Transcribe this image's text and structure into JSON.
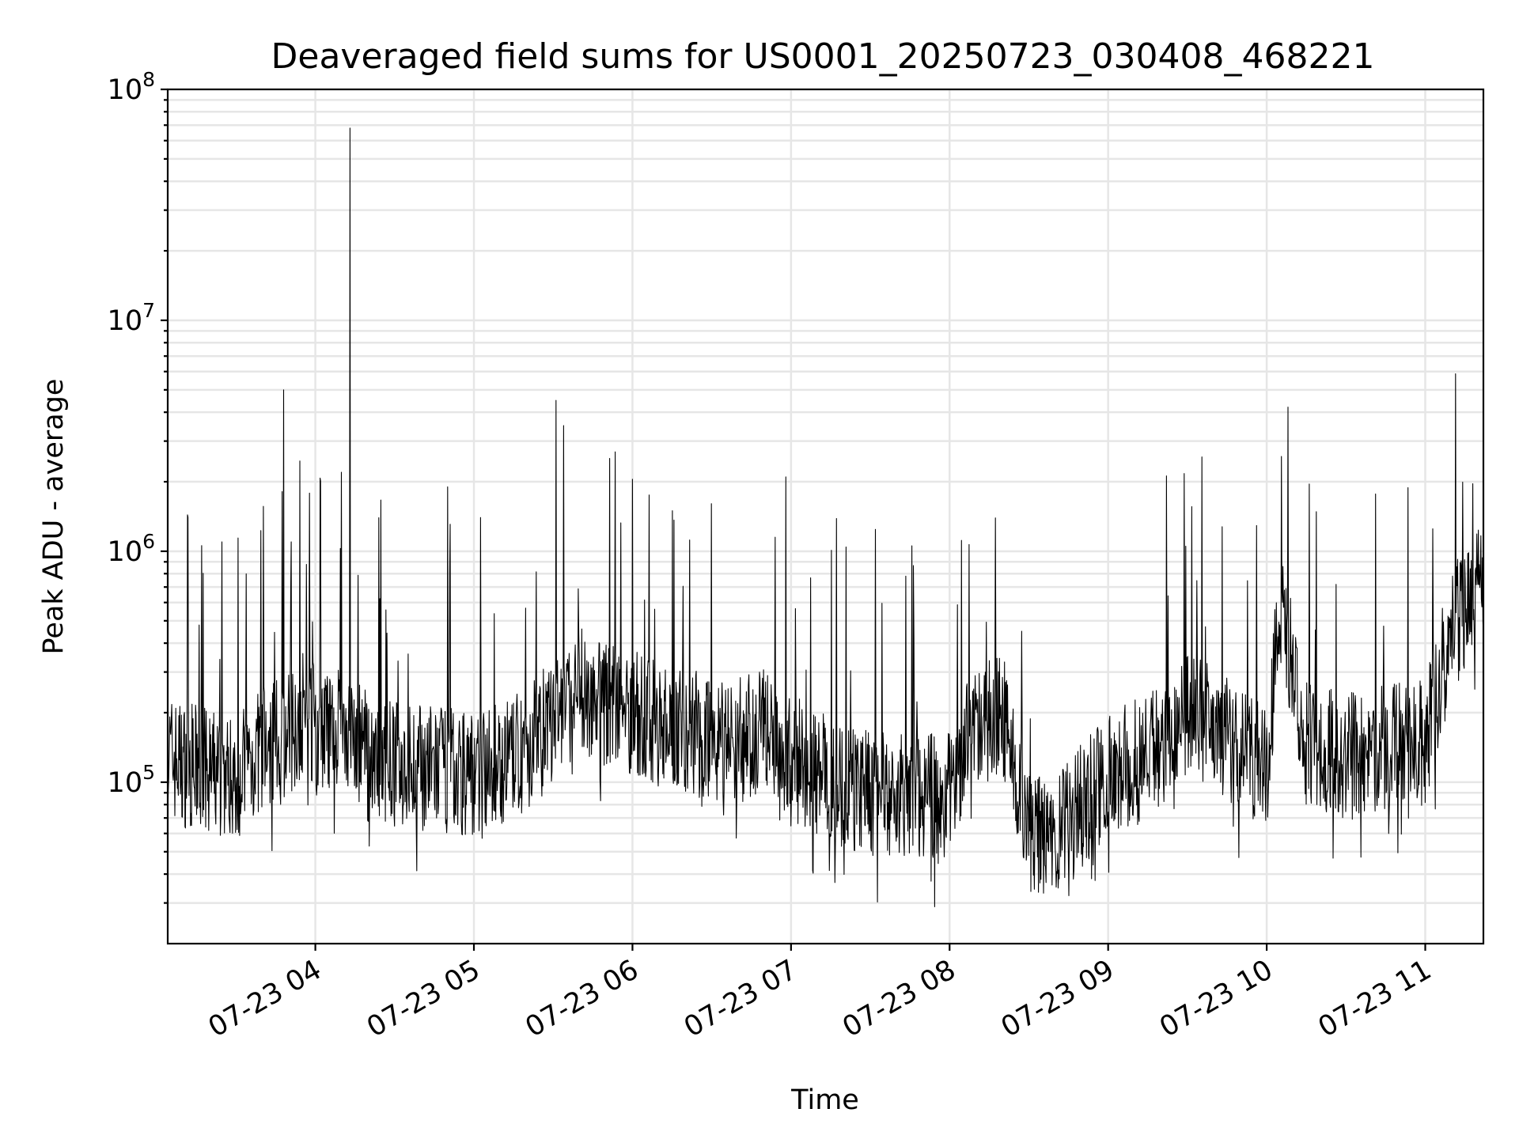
{
  "chart_data": {
    "type": "line",
    "title": "Deaveraged field sums for US0001_20250723_030408_468221",
    "xlabel": "Time",
    "ylabel": "Peak ADU - average",
    "yscale": "log",
    "ylim": [
      20000,
      100000000
    ],
    "xlim": [
      "2025-07-23 03:04:08",
      "2025-07-23 11:22:00"
    ],
    "grid": "major and minor",
    "line_color": "#000000",
    "x_ticks": [
      {
        "value": "2025-07-23 04:00",
        "label": "07-23 04"
      },
      {
        "value": "2025-07-23 05:00",
        "label": "07-23 05"
      },
      {
        "value": "2025-07-23 06:00",
        "label": "07-23 06"
      },
      {
        "value": "2025-07-23 07:00",
        "label": "07-23 07"
      },
      {
        "value": "2025-07-23 08:00",
        "label": "07-23 08"
      },
      {
        "value": "2025-07-23 09:00",
        "label": "07-23 09"
      },
      {
        "value": "2025-07-23 10:00",
        "label": "07-23 10"
      },
      {
        "value": "2025-07-23 11:00",
        "label": "07-23 11"
      }
    ],
    "y_ticks": [
      {
        "value": 100000,
        "base": "10",
        "exp": "5"
      },
      {
        "value": 1000000,
        "base": "10",
        "exp": "6"
      },
      {
        "value": 10000000,
        "base": "10",
        "exp": "7"
      },
      {
        "value": 100000000,
        "base": "10",
        "exp": "8"
      }
    ],
    "series": [
      {
        "x": [
          "2025-07-23 03:04",
          "2025-07-23 03:10",
          "2025-07-23 03:20",
          "2025-07-23 03:30",
          "2025-07-23 03:40",
          "2025-07-23 03:48",
          "2025-07-23 03:55",
          "2025-07-23 04:05",
          "2025-07-23 04:12",
          "2025-07-23 04:20",
          "2025-07-23 04:30",
          "2025-07-23 04:45",
          "2025-07-23 05:00",
          "2025-07-23 05:15",
          "2025-07-23 05:30",
          "2025-07-23 05:40",
          "2025-07-23 05:50",
          "2025-07-23 06:00",
          "2025-07-23 06:10",
          "2025-07-23 06:20",
          "2025-07-23 06:30",
          "2025-07-23 06:40",
          "2025-07-23 06:50",
          "2025-07-23 07:00",
          "2025-07-23 07:15",
          "2025-07-23 07:30",
          "2025-07-23 07:45",
          "2025-07-23 08:00",
          "2025-07-23 08:10",
          "2025-07-23 08:20",
          "2025-07-23 08:30",
          "2025-07-23 08:40",
          "2025-07-23 08:50",
          "2025-07-23 09:00",
          "2025-07-23 09:10",
          "2025-07-23 09:20",
          "2025-07-23 09:30",
          "2025-07-23 09:40",
          "2025-07-23 09:50",
          "2025-07-23 10:00",
          "2025-07-23 10:05",
          "2025-07-23 10:15",
          "2025-07-23 10:30",
          "2025-07-23 10:45",
          "2025-07-23 11:00",
          "2025-07-23 11:10",
          "2025-07-23 11:20"
        ],
        "y": [
          130000,
          120000,
          110000,
          105000,
          140000,
          150000,
          200000,
          160000,
          170000,
          130000,
          120000,
          115000,
          110000,
          125000,
          180000,
          250000,
          220000,
          200000,
          180000,
          170000,
          160000,
          150000,
          170000,
          130000,
          100000,
          90000,
          85000,
          90000,
          180000,
          200000,
          60000,
          55000,
          80000,
          110000,
          120000,
          150000,
          200000,
          180000,
          140000,
          120000,
          600000,
          150000,
          130000,
          140000,
          150000,
          450000,
          700000
        ]
      }
    ],
    "peaks": [
      {
        "x": "2025-07-23 03:48",
        "y": 5000000
      },
      {
        "x": "2025-07-23 04:13",
        "y": 68000000
      },
      {
        "x": "2025-07-23 05:31",
        "y": 4500000
      },
      {
        "x": "2025-07-23 05:34",
        "y": 3500000
      },
      {
        "x": "2025-07-23 06:58",
        "y": 2100000
      },
      {
        "x": "2025-07-23 06:00",
        "y": 2050000
      },
      {
        "x": "2025-07-23 04:50",
        "y": 1900000
      }
    ]
  }
}
